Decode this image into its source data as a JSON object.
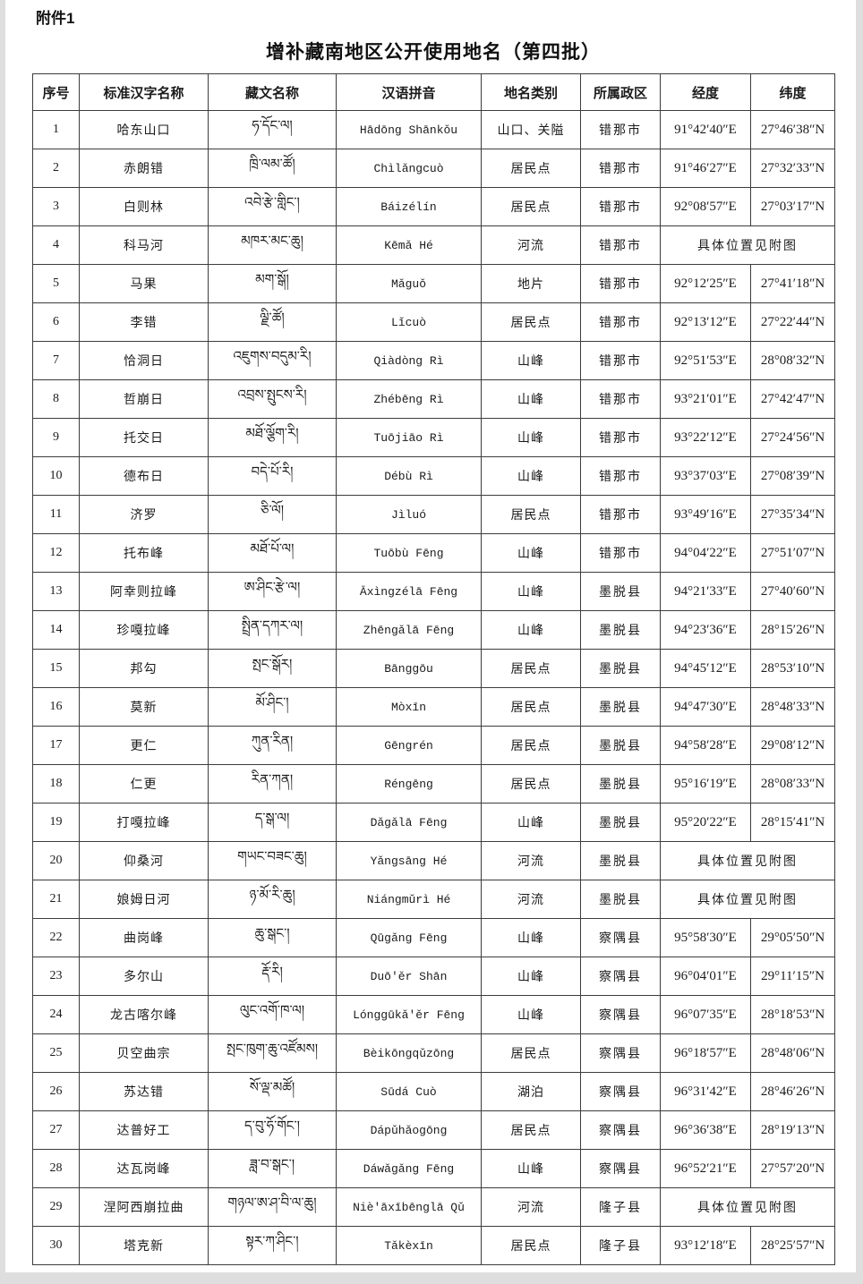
{
  "page": {
    "attachment_label": "附件1",
    "title": "增补藏南地区公开使用地名（第四批）"
  },
  "table": {
    "columns": [
      "序号",
      "标准汉字名称",
      "藏文名称",
      "汉语拼音",
      "地名类别",
      "所属政区",
      "经度",
      "纬度"
    ],
    "rows": [
      {
        "no": "1",
        "name": "哈东山口",
        "tibetan": "ཧ་དོང་ལ།",
        "pinyin": "Hādōng Shānkǒu",
        "category": "山口、关隘",
        "region": "错那市",
        "longitude": "91°42′40″E",
        "latitude": "27°46′38″N"
      },
      {
        "no": "2",
        "name": "赤朗错",
        "tibetan": "ཁྲི་ལམ་ཚོ།",
        "pinyin": "Chìlǎngcuò",
        "category": "居民点",
        "region": "错那市",
        "longitude": "91°46′27″E",
        "latitude": "27°32′33″N"
      },
      {
        "no": "3",
        "name": "白则林",
        "tibetan": "འབེ་རྩེ་གླིང་།",
        "pinyin": "Báizélín",
        "category": "居民点",
        "region": "错那市",
        "longitude": "92°08′57″E",
        "latitude": "27°03′17″N"
      },
      {
        "no": "4",
        "name": "科马河",
        "tibetan": "མཁར་མང་ཆུ།",
        "pinyin": "Kēmǎ Hé",
        "category": "河流",
        "region": "错那市",
        "location_note": "具体位置见附图"
      },
      {
        "no": "5",
        "name": "马果",
        "tibetan": "མག་སྒོ།",
        "pinyin": "Mǎguǒ",
        "category": "地片",
        "region": "错那市",
        "longitude": "92°12′25″E",
        "latitude": "27°41′18″N"
      },
      {
        "no": "6",
        "name": "李错",
        "tibetan": "ལྗི་ཚོ།",
        "pinyin": "Lǐcuò",
        "category": "居民点",
        "region": "错那市",
        "longitude": "92°13′12″E",
        "latitude": "27°22′44″N"
      },
      {
        "no": "7",
        "name": "恰洞日",
        "tibetan": "འཇུགས་བདུམ་རི།",
        "pinyin": "Qiàdòng Rì",
        "category": "山峰",
        "region": "错那市",
        "longitude": "92°51′53″E",
        "latitude": "28°08′32″N"
      },
      {
        "no": "8",
        "name": "哲崩日",
        "tibetan": "འབྲས་སྤུངས་རི།",
        "pinyin": "Zhébēng Rì",
        "category": "山峰",
        "region": "错那市",
        "longitude": "93°21′01″E",
        "latitude": "27°42′47″N"
      },
      {
        "no": "9",
        "name": "托交日",
        "tibetan": "མཐོ་ལྕོག་རི།",
        "pinyin": "Tuōjiāo Rì",
        "category": "山峰",
        "region": "错那市",
        "longitude": "93°22′12″E",
        "latitude": "27°24′56″N"
      },
      {
        "no": "10",
        "name": "德布日",
        "tibetan": "བདེ་པོ་རི།",
        "pinyin": "Débù Rì",
        "category": "山峰",
        "region": "错那市",
        "longitude": "93°37′03″E",
        "latitude": "27°08′39″N"
      },
      {
        "no": "11",
        "name": "济罗",
        "tibetan": "ཅི་ལོ།",
        "pinyin": "Jìluó",
        "category": "居民点",
        "region": "错那市",
        "longitude": "93°49′16″E",
        "latitude": "27°35′34″N"
      },
      {
        "no": "12",
        "name": "托布峰",
        "tibetan": "མཐོ་པོ་ལ།",
        "pinyin": "Tuōbù Fēng",
        "category": "山峰",
        "region": "错那市",
        "longitude": "94°04′22″E",
        "latitude": "27°51′07″N"
      },
      {
        "no": "13",
        "name": "阿幸则拉峰",
        "tibetan": "ཨ་ཤིང་རྩེ་ལ།",
        "pinyin": "Āxìngzélā Fēng",
        "category": "山峰",
        "region": "墨脱县",
        "longitude": "94°21′33″E",
        "latitude": "27°40′60″N"
      },
      {
        "no": "14",
        "name": "珍嘎拉峰",
        "tibetan": "སྤྲིན་དཀར་ལ།",
        "pinyin": "Zhēngǎlā Fēng",
        "category": "山峰",
        "region": "墨脱县",
        "longitude": "94°23′36″E",
        "latitude": "28°15′26″N"
      },
      {
        "no": "15",
        "name": "邦勾",
        "tibetan": "སྤང་སྒོར།",
        "pinyin": "Bānggōu",
        "category": "居民点",
        "region": "墨脱县",
        "longitude": "94°45′12″E",
        "latitude": "28°53′10″N"
      },
      {
        "no": "16",
        "name": "莫新",
        "tibetan": "མོ་ཤིང་།",
        "pinyin": "Mòxīn",
        "category": "居民点",
        "region": "墨脱县",
        "longitude": "94°47′30″E",
        "latitude": "28°48′33″N"
      },
      {
        "no": "17",
        "name": "更仁",
        "tibetan": "ཀུན་རིན།",
        "pinyin": "Gēngrén",
        "category": "居民点",
        "region": "墨脱县",
        "longitude": "94°58′28″E",
        "latitude": "29°08′12″N"
      },
      {
        "no": "18",
        "name": "仁更",
        "tibetan": "རིན་ཀན།",
        "pinyin": "Réngēng",
        "category": "居民点",
        "region": "墨脱县",
        "longitude": "95°16′19″E",
        "latitude": "28°08′33″N"
      },
      {
        "no": "19",
        "name": "打嘎拉峰",
        "tibetan": "ད་སྒ་ལ།",
        "pinyin": "Dǎgǎlā Fēng",
        "category": "山峰",
        "region": "墨脱县",
        "longitude": "95°20′22″E",
        "latitude": "28°15′41″N"
      },
      {
        "no": "20",
        "name": "仰桑河",
        "tibetan": "གཡང་བཟང་ཆུ།",
        "pinyin": "Yǎngsāng Hé",
        "category": "河流",
        "region": "墨脱县",
        "location_note": "具体位置见附图"
      },
      {
        "no": "21",
        "name": "娘姆日河",
        "tibetan": "ཉ་མོ་རི་ཆུ།",
        "pinyin": "Niángmǔrì Hé",
        "category": "河流",
        "region": "墨脱县",
        "location_note": "具体位置见附图"
      },
      {
        "no": "22",
        "name": "曲岗峰",
        "tibetan": "ཆུ་སྒང་།",
        "pinyin": "Qūgǎng Fēng",
        "category": "山峰",
        "region": "察隅县",
        "longitude": "95°58′30″E",
        "latitude": "29°05′50″N"
      },
      {
        "no": "23",
        "name": "多尔山",
        "tibetan": "རྡོ་རི།",
        "pinyin": "Duō'ěr Shān",
        "category": "山峰",
        "region": "察隅县",
        "longitude": "96°04′01″E",
        "latitude": "29°11′15″N"
      },
      {
        "no": "24",
        "name": "龙古喀尔峰",
        "tibetan": "ལུང་འགོ་ཁ་ལ།",
        "pinyin": "Lónggūkǎ'ěr Fēng",
        "category": "山峰",
        "region": "察隅县",
        "longitude": "96°07′35″E",
        "latitude": "28°18′53″N"
      },
      {
        "no": "25",
        "name": "贝空曲宗",
        "tibetan": "སྤང་ཁུག་ཆུ་འཛོམས།",
        "pinyin": "Bèikōngqǔzōng",
        "category": "居民点",
        "region": "察隅县",
        "longitude": "96°18′57″E",
        "latitude": "28°48′06″N"
      },
      {
        "no": "26",
        "name": "苏达错",
        "tibetan": "སོ་ལྡ་མཚོ།",
        "pinyin": "Sūdá Cuò",
        "category": "湖泊",
        "region": "察隅县",
        "longitude": "96°31′42″E",
        "latitude": "28°46′26″N"
      },
      {
        "no": "27",
        "name": "达普好工",
        "tibetan": "ད་བུ་ཧོ་གོང་།",
        "pinyin": "Dápǔhǎogōng",
        "category": "居民点",
        "region": "察隅县",
        "longitude": "96°36′38″E",
        "latitude": "28°19′13″N"
      },
      {
        "no": "28",
        "name": "达瓦岗峰",
        "tibetan": "ཟླ་བ་སྒང་།",
        "pinyin": "Dáwǎgǎng Fēng",
        "category": "山峰",
        "region": "察隅县",
        "longitude": "96°52′21″E",
        "latitude": "27°57′20″N"
      },
      {
        "no": "29",
        "name": "涅阿西崩拉曲",
        "tibetan": "གཉལ་ཨ་ཤ་བི་ལ་ཆུ།",
        "pinyin": "Niè'āxībēnglā Qǔ",
        "category": "河流",
        "region": "隆子县",
        "location_note": "具体位置见附图"
      },
      {
        "no": "30",
        "name": "塔克新",
        "tibetan": "སྟར་ཀ་ཤིང་།",
        "pinyin": "Tǎkèxīn",
        "category": "居民点",
        "region": "隆子县",
        "longitude": "93°12′18″E",
        "latitude": "28°25′57″N"
      }
    ]
  }
}
